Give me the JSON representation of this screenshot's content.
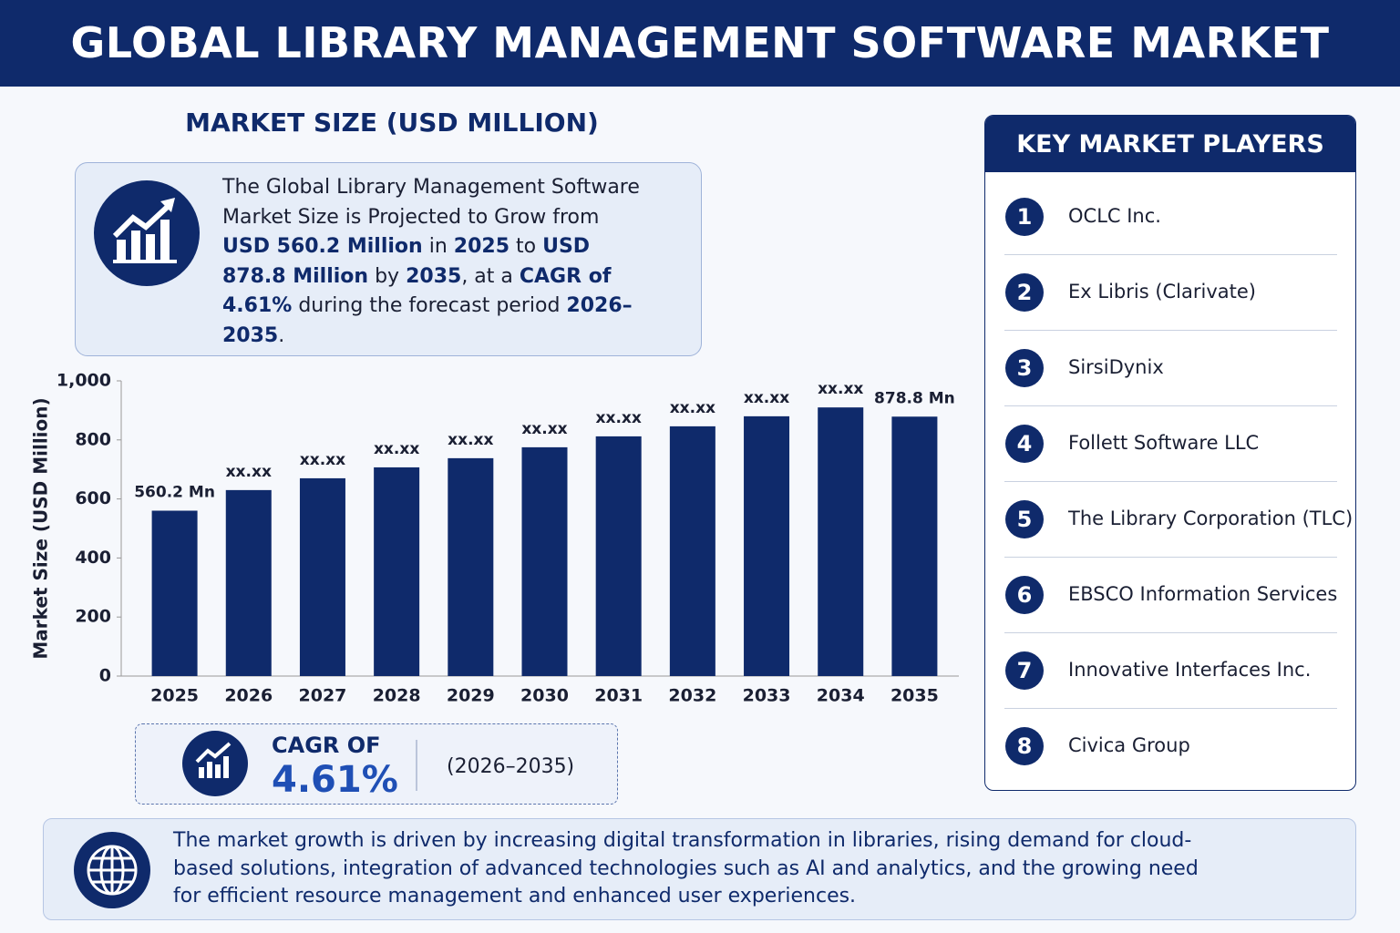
{
  "header": {
    "title": "GLOBAL LIBRARY MANAGEMENT SOFTWARE MARKET"
  },
  "chart_data": {
    "type": "bar",
    "title": "MARKET SIZE (USD MILLION)",
    "y_label": "Market Size (USD Million)",
    "categories": [
      "2025",
      "2026",
      "2027",
      "2028",
      "2029",
      "2030",
      "2031",
      "2032",
      "2033",
      "2034",
      "2035"
    ],
    "values": [
      560.2,
      630,
      670,
      707,
      738,
      775,
      812,
      846,
      880,
      910,
      878.8
    ],
    "value_labels": [
      "560.2 Mn",
      "xx.xx",
      "xx.xx",
      "xx.xx",
      "xx.xx",
      "xx.xx",
      "xx.xx",
      "xx.xx",
      "xx.xx",
      "xx.xx",
      "878.8 Mn"
    ],
    "color": "#0f2a6b",
    "ylim": [
      0,
      1000
    ],
    "yticks": [
      0,
      200,
      400,
      600,
      800,
      {
        "value": 1000,
        "label": "1,000"
      }
    ]
  },
  "summary": {
    "segments": [
      {
        "text": "The Global Library Management Software Market Size is Projected to Grow from ",
        "bold": false
      },
      {
        "text": "USD 560.2 Million",
        "bold": true
      },
      {
        "text": " in ",
        "bold": false
      },
      {
        "text": "2025",
        "bold": true
      },
      {
        "text": " to ",
        "bold": false
      },
      {
        "text": "USD 878.8 Million",
        "bold": true
      },
      {
        "text": " by ",
        "bold": false
      },
      {
        "text": "2035",
        "bold": true
      },
      {
        "text": ", at a ",
        "bold": false
      },
      {
        "text": "CAGR of 4.61%",
        "bold": true
      },
      {
        "text": " during the forecast period ",
        "bold": false
      },
      {
        "text": "2026–2035",
        "bold": true
      },
      {
        "text": ".",
        "bold": false
      }
    ]
  },
  "cagr": {
    "label": "CAGR OF",
    "value": "4.61%",
    "period": "(2026–2035)"
  },
  "key_players": {
    "title": "KEY MARKET PLAYERS",
    "players": [
      {
        "rank": 1,
        "name": "OCLC Inc."
      },
      {
        "rank": 2,
        "name": "Ex Libris (Clarivate)"
      },
      {
        "rank": 3,
        "name": "SirsiDynix"
      },
      {
        "rank": 4,
        "name": "Follett Software LLC"
      },
      {
        "rank": 5,
        "name": "The Library Corporation (TLC)"
      },
      {
        "rank": 6,
        "name": "EBSCO Information Services"
      },
      {
        "rank": 7,
        "name": "Innovative Interfaces Inc."
      },
      {
        "rank": 8,
        "name": "Civica Group"
      }
    ]
  },
  "footer": {
    "text": "The market growth is driven by increasing digital transformation in libraries, rising demand for cloud-based solutions, integration of advanced technologies such as AI and analytics, and the growing need for efficient resource management and enhanced user experiences."
  }
}
